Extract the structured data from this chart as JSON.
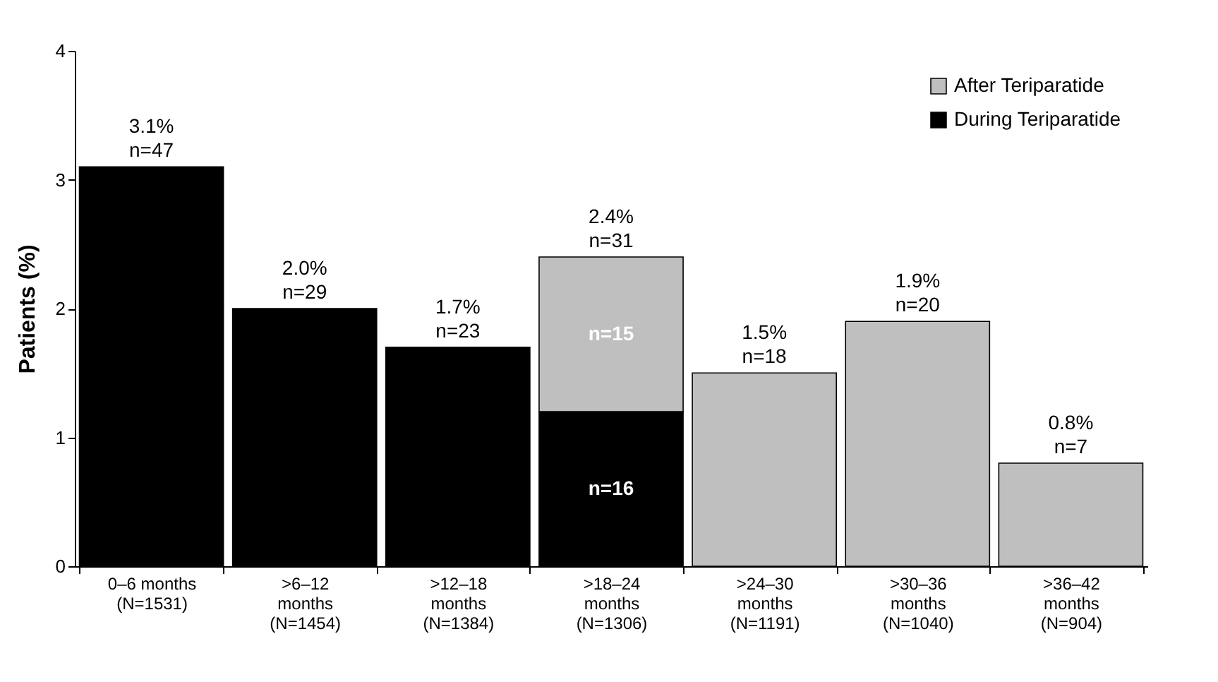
{
  "chart_data": {
    "type": "bar",
    "stacked": true,
    "ylabel": "Patients (%)",
    "ylim": [
      0,
      4
    ],
    "yticks": [
      0,
      1,
      2,
      3,
      4
    ],
    "grid": false,
    "legend": "top right",
    "categories": [
      "0–6 months\n(N=1531)",
      ">6–12\nmonths\n(N=1454)",
      ">12–18\nmonths\n(N=1384)",
      ">18–24\nmonths\n(N=1306)",
      ">24–30\nmonths\n(N=1191)",
      ">30–36\nmonths\n(N=1040)",
      ">36–42\nmonths\n(N=904)"
    ],
    "series": [
      {
        "name": "During Teriparatide",
        "color": "#000000",
        "values": [
          3.1,
          2.0,
          1.7,
          1.2,
          null,
          null,
          null
        ]
      },
      {
        "name": "After Teriparatide",
        "color": "#bfbfbf",
        "values": [
          null,
          null,
          null,
          1.2,
          1.5,
          1.9,
          0.8
        ]
      }
    ],
    "annotations": [
      "n=15",
      "n=16"
    ],
    "totals": [
      "3.1%\nn=47",
      "2.0%\nn=29",
      "1.7%\nn=23",
      "2.4%\nn=31",
      "1.5%\nn=18",
      "1.9%\nn=20",
      "0.8%\nn=7"
    ]
  }
}
